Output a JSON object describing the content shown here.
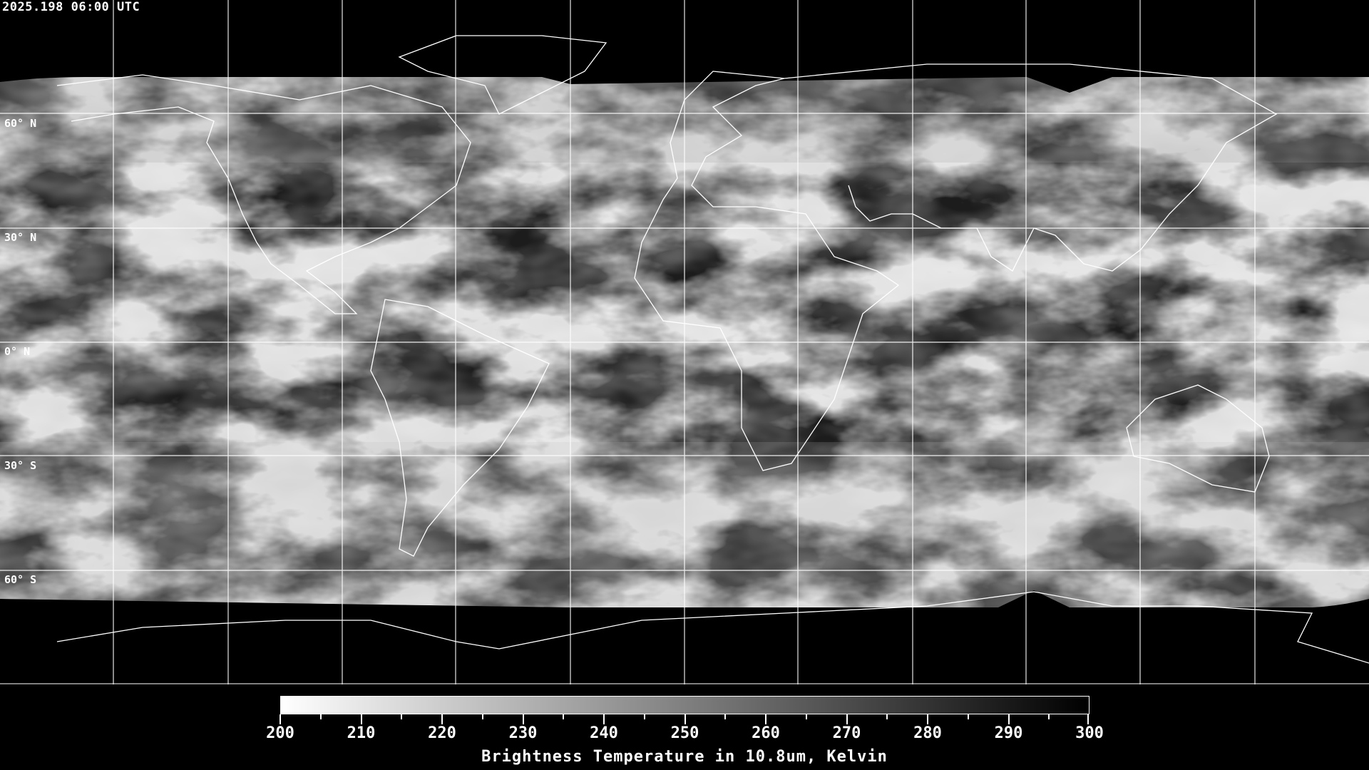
{
  "header": {
    "timestamp": "2025.198 06:00 UTC"
  },
  "map": {
    "projection": "equirectangular",
    "grid_spacing_deg": 30,
    "lat_labels": [
      "60° N",
      "30° N",
      "0° N",
      "30° S",
      "60° S"
    ],
    "colors": {
      "background": "#000000",
      "grid": "#ffffff",
      "coastline": "#ffffff"
    }
  },
  "colorbar": {
    "min": 200,
    "max": 300,
    "tick_labels": [
      "200",
      "210",
      "220",
      "230",
      "240",
      "250",
      "260",
      "270",
      "280",
      "290",
      "300"
    ],
    "title": "Brightness Temperature in 10.8um, Kelvin",
    "colormap": "grayscale-inverted",
    "colors": {
      "low": "#ffffff",
      "high": "#000000"
    }
  }
}
